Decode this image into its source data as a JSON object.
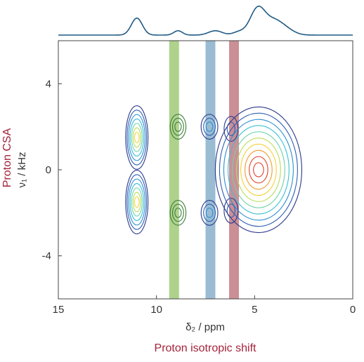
{
  "chart_data": {
    "type": "contour",
    "xlabel": "δ₂ / ppm",
    "ylabel": "ν₁ / kHz",
    "xlim": [
      15,
      0
    ],
    "ylim": [
      -6,
      6
    ],
    "x_ticks": [
      15,
      10,
      5,
      0
    ],
    "y_ticks": [
      4,
      0,
      -4
    ],
    "grid": false,
    "x_caption": "Proton isotropic shift",
    "y_caption": "Proton CSA",
    "caption_color": "#a3233a",
    "projection": {
      "type": "line",
      "color": "#1f5a85",
      "peaks": [
        {
          "ppm": 11.0,
          "intensity": 0.55,
          "width": 0.28
        },
        {
          "ppm": 8.9,
          "intensity": 0.14,
          "width": 0.22
        },
        {
          "ppm": 7.0,
          "intensity": 0.14,
          "width": 0.35
        },
        {
          "ppm": 5.8,
          "intensity": 0.1,
          "width": 0.3
        },
        {
          "ppm": 4.85,
          "intensity": 0.85,
          "width": 0.38
        },
        {
          "ppm": 4.0,
          "intensity": 0.45,
          "width": 0.45
        },
        {
          "ppm": 3.3,
          "intensity": 0.12,
          "width": 0.4
        }
      ]
    },
    "highlight_bands": [
      {
        "ppm_from": 9.35,
        "ppm_to": 8.85,
        "color": "#8cbf5a"
      },
      {
        "ppm_from": 7.5,
        "ppm_to": 7.0,
        "color": "#6e9fc0"
      },
      {
        "ppm_from": 6.3,
        "ppm_to": 5.8,
        "color": "#b5606a"
      }
    ],
    "contour_peaks": [
      {
        "ppm": 11.0,
        "khz": 1.5,
        "sx": 0.22,
        "sy": 1.2,
        "amplitude": 0.7,
        "max_level": 6
      },
      {
        "ppm": 11.0,
        "khz": -1.5,
        "sx": 0.22,
        "sy": 1.2,
        "amplitude": 0.7,
        "max_level": 6
      },
      {
        "ppm": 8.9,
        "khz": 2.0,
        "sx": 0.15,
        "sy": 0.45,
        "amplitude": 0.35,
        "max_level": 2,
        "color": "#3b7d3b"
      },
      {
        "ppm": 8.9,
        "khz": -2.0,
        "sx": 0.15,
        "sy": 0.45,
        "amplitude": 0.35,
        "max_level": 2,
        "color": "#3b7d3b"
      },
      {
        "ppm": 7.3,
        "khz": 2.0,
        "sx": 0.16,
        "sy": 0.45,
        "amplitude": 0.3,
        "max_level": 2
      },
      {
        "ppm": 7.3,
        "khz": -2.0,
        "sx": 0.16,
        "sy": 0.45,
        "amplitude": 0.3,
        "max_level": 2
      },
      {
        "ppm": 6.2,
        "khz": 1.9,
        "sx": 0.13,
        "sy": 0.45,
        "amplitude": 0.25,
        "max_level": 1
      },
      {
        "ppm": 6.2,
        "khz": -1.9,
        "sx": 0.13,
        "sy": 0.45,
        "amplitude": 0.25,
        "max_level": 1
      },
      {
        "ppm": 4.8,
        "khz": 0.0,
        "sx": 0.9,
        "sy": 2.4,
        "amplitude": 1.0,
        "max_level": 9
      }
    ],
    "colormap": [
      "#2d3a8c",
      "#2f5fb5",
      "#2c8fd0",
      "#3bbfd8",
      "#6fd3a8",
      "#b8dc5a",
      "#f2d23a",
      "#f39a2d",
      "#e2402a"
    ]
  }
}
